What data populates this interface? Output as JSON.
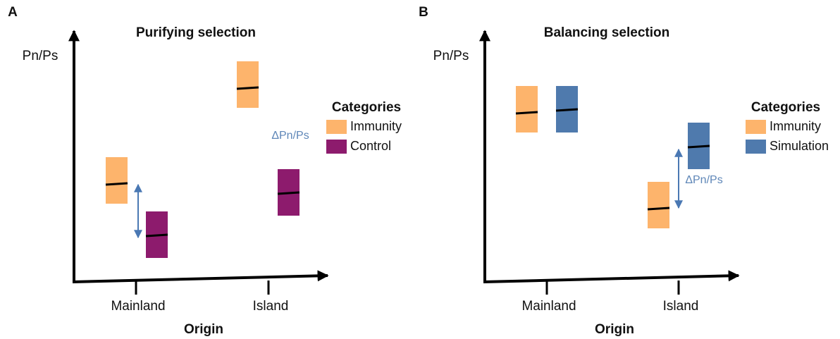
{
  "panels": [
    {
      "label": "A",
      "title": "Purifying selection",
      "y_label": "Pn/Ps",
      "x_label": "Origin",
      "x_categories": [
        "Mainland",
        "Island"
      ],
      "delta_label": "ΔPn/Ps",
      "legend": {
        "title": "Categories",
        "items": [
          {
            "name": "Immunity",
            "color": "#fdb46c"
          },
          {
            "name": "Control",
            "color": "#8d1b6d"
          }
        ]
      }
    },
    {
      "label": "B",
      "title": "Balancing selection",
      "y_label": "Pn/Ps",
      "x_label": "Origin",
      "x_categories": [
        "Mainland",
        "Island"
      ],
      "delta_label": "ΔPn/Ps",
      "legend": {
        "title": "Categories",
        "items": [
          {
            "name": "Immunity",
            "color": "#fdb46c"
          },
          {
            "name": "Simulation",
            "color": "#4f7aad"
          }
        ]
      }
    }
  ]
}
